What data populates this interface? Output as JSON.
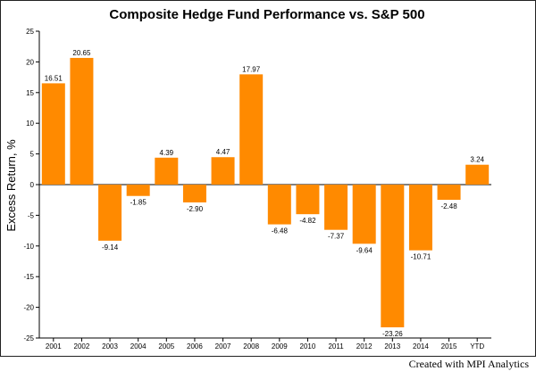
{
  "footer": {
    "credit": "Created with MPI Analytics"
  },
  "chart_data": {
    "type": "bar",
    "title": "Composite Hedge Fund Performance vs. S&P 500",
    "xlabel": "",
    "ylabel": "Excess Return, %",
    "ylim": [
      -25,
      25
    ],
    "yticks": [
      25,
      20,
      15,
      10,
      5,
      0,
      -5,
      -10,
      -15,
      -20,
      -25
    ],
    "grid": false,
    "legend": "none",
    "bar_color": "#ff8a00",
    "categories": [
      "2001",
      "2002",
      "2003",
      "2004",
      "2005",
      "2006",
      "2007",
      "2008",
      "2009",
      "2010",
      "2011",
      "2012",
      "2013",
      "2014",
      "2015",
      "YTD"
    ],
    "values": [
      16.51,
      20.65,
      -9.14,
      -1.85,
      4.39,
      -2.9,
      4.47,
      17.97,
      -6.48,
      -4.82,
      -7.37,
      -9.64,
      -23.26,
      -10.71,
      -2.48,
      3.24
    ],
    "value_labels": [
      "16.51",
      "20.65",
      "-9.14",
      "-1.85",
      "4.39",
      "-2.90",
      "4.47",
      "17.97",
      "-6.48",
      "-4.82",
      "-7.37",
      "-9.64",
      "-23.26",
      "-10.71",
      "-2.48",
      "3.24"
    ]
  }
}
